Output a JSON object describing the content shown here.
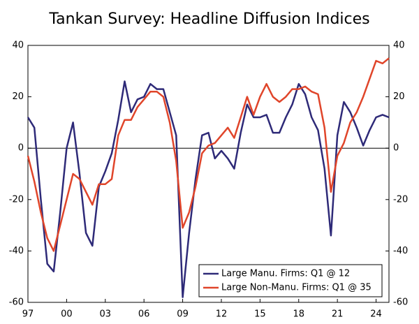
{
  "chart_data": {
    "type": "line",
    "title": "Tankan Survey: Headline Diffusion Indices",
    "x": [
      1997,
      1997.5,
      1998,
      1998.5,
      1999,
      1999.5,
      2000,
      2000.5,
      2001,
      2001.5,
      2002,
      2002.5,
      2003,
      2003.5,
      2004,
      2004.5,
      2005,
      2005.5,
      2006,
      2006.5,
      2007,
      2007.5,
      2008,
      2008.5,
      2009,
      2009.5,
      2010,
      2010.5,
      2011,
      2011.5,
      2012,
      2012.5,
      2013,
      2013.5,
      2014,
      2014.5,
      2015,
      2015.5,
      2016,
      2016.5,
      2017,
      2017.5,
      2018,
      2018.5,
      2019,
      2019.5,
      2020,
      2020.5,
      2021,
      2021.5,
      2022,
      2022.5,
      2023,
      2023.5,
      2024,
      2024.5,
      2025
    ],
    "series": [
      {
        "name": "Large Manu. Firms: Q1 @ 12",
        "color": "#2e2a78",
        "values": [
          12,
          8,
          -20,
          -45,
          -48,
          -25,
          0,
          10,
          -10,
          -33,
          -38,
          -15,
          -9,
          -2,
          11,
          26,
          14,
          19,
          20,
          25,
          23,
          23,
          14,
          5,
          -58,
          -33,
          -12,
          5,
          6,
          -4,
          -1,
          -4,
          -8,
          6,
          17,
          12,
          12,
          13,
          6,
          6,
          12,
          17,
          25,
          21,
          12,
          7,
          -8,
          -34,
          5,
          18,
          14,
          8,
          1,
          7,
          12,
          13,
          12
        ]
      },
      {
        "name": "Large Non-Manu. Firms: Q1 @ 35",
        "color": "#e0452a",
        "values": [
          -3,
          -13,
          -25,
          -35,
          -40,
          -30,
          -20,
          -10,
          -12,
          -17,
          -22,
          -14,
          -14,
          -12,
          5,
          11,
          11,
          16,
          19,
          22,
          22,
          20,
          10,
          -5,
          -31,
          -25,
          -15,
          -2,
          1,
          2,
          5,
          8,
          4,
          12,
          20,
          13,
          20,
          25,
          20,
          18,
          20,
          23,
          23,
          24,
          22,
          21,
          8,
          -17,
          -3,
          2,
          10,
          14,
          20,
          27,
          34,
          33,
          35
        ]
      }
    ],
    "xlim": [
      1997,
      2025
    ],
    "xticks": [
      {
        "value": 1997,
        "label": "97"
      },
      {
        "value": 2000,
        "label": "00"
      },
      {
        "value": 2003,
        "label": "03"
      },
      {
        "value": 2006,
        "label": "06"
      },
      {
        "value": 2009,
        "label": "09"
      },
      {
        "value": 2012,
        "label": "12"
      },
      {
        "value": 2015,
        "label": "15"
      },
      {
        "value": 2018,
        "label": "18"
      },
      {
        "value": 2021,
        "label": "21"
      },
      {
        "value": 2024,
        "label": "24"
      }
    ],
    "ylim": [
      -60,
      40
    ],
    "yticks": [
      -60,
      -40,
      -20,
      0,
      20,
      40
    ],
    "legend": "lower-right"
  }
}
